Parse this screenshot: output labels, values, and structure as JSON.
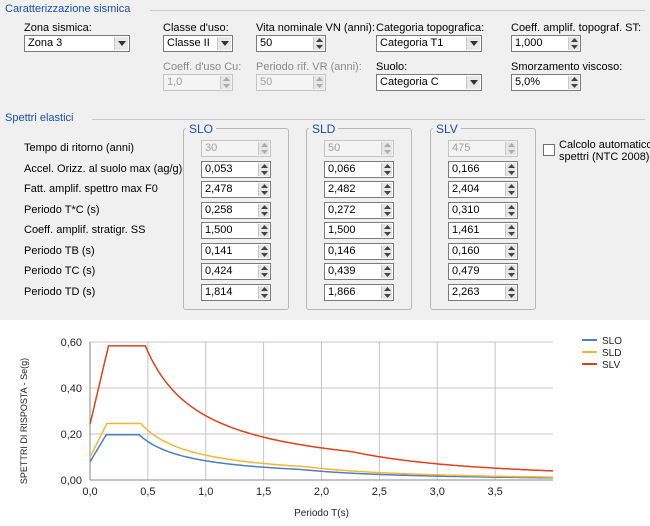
{
  "sections": {
    "sismica": "Caratterizzazione sismica",
    "spettri": "Spettri elastici"
  },
  "fields": {
    "zona": {
      "label": "Zona sismica:",
      "value": "Zona 3"
    },
    "classe": {
      "label": "Classe d'uso:",
      "value": "Classe II"
    },
    "vita": {
      "label": "Vita nominale VN (anni):",
      "value": "50"
    },
    "categoria_topo": {
      "label": "Categoria topografica:",
      "value": "Categoria T1"
    },
    "st": {
      "label": "Coeff. amplif. topograf. ST:",
      "value": "1,000"
    },
    "cu": {
      "label": "Coeff. d'uso Cu:",
      "value": "1,0"
    },
    "vr": {
      "label": "Periodo rif. VR (anni):",
      "value": "50"
    },
    "suolo": {
      "label": "Suolo:",
      "value": "Categoria C"
    },
    "smorz": {
      "label": "Smorzamento viscoso:",
      "value": "5,0%"
    }
  },
  "spettri": {
    "groups": [
      "SLO",
      "SLD",
      "SLV"
    ],
    "rows": [
      {
        "label": "Tempo di ritorno (anni)",
        "values": [
          "30",
          "50",
          "475"
        ],
        "disabled": true
      },
      {
        "label": "Accel. Orizz. al suolo max (ag/g)",
        "values": [
          "0,053",
          "0,066",
          "0,166"
        ]
      },
      {
        "label": "Fatt. amplif. spettro max F0",
        "values": [
          "2,478",
          "2,482",
          "2,404"
        ]
      },
      {
        "label": "Periodo T*C (s)",
        "values": [
          "0,258",
          "0,272",
          "0,310"
        ]
      },
      {
        "label": "Coeff. amplif. stratigr. SS",
        "values": [
          "1,500",
          "1,500",
          "1,461"
        ]
      },
      {
        "label": "Periodo TB (s)",
        "values": [
          "0,141",
          "0,146",
          "0,160"
        ]
      },
      {
        "label": "Periodo TC (s)",
        "values": [
          "0,424",
          "0,439",
          "0,479"
        ]
      },
      {
        "label": "Periodo TD (s)",
        "values": [
          "1,814",
          "1,866",
          "2,263"
        ]
      }
    ],
    "checkbox_line1": "Calcolo automatico",
    "checkbox_line2": "spettri (NTC 2008)"
  },
  "chart_data": {
    "type": "line",
    "xlabel": "Periodo T(s)",
    "ylabel": "SPETTRI DI RISPOSTA - Se(g)",
    "xlim": [
      0,
      4
    ],
    "ylim": [
      0,
      0.6
    ],
    "xticks": [
      "0,0",
      "0,5",
      "1,0",
      "1,5",
      "2,0",
      "2,5",
      "3,0",
      "3,5"
    ],
    "yticks": [
      "0,00",
      "0,20",
      "0,40",
      "0,60"
    ],
    "legend_position": "top-right",
    "grid": true,
    "series": [
      {
        "name": "SLO",
        "color": "#4a7fc1",
        "ag": 0.053,
        "F0": 2.478,
        "S": 1.5,
        "TB": 0.141,
        "TC": 0.424,
        "TD": 1.814
      },
      {
        "name": "SLD",
        "color": "#f5b731",
        "ag": 0.066,
        "F0": 2.482,
        "S": 1.5,
        "TB": 0.146,
        "TC": 0.439,
        "TD": 1.866
      },
      {
        "name": "SLV",
        "color": "#e0401a",
        "ag": 0.166,
        "F0": 2.404,
        "S": 1.461,
        "TB": 0.16,
        "TC": 0.479,
        "TD": 2.263
      }
    ]
  }
}
